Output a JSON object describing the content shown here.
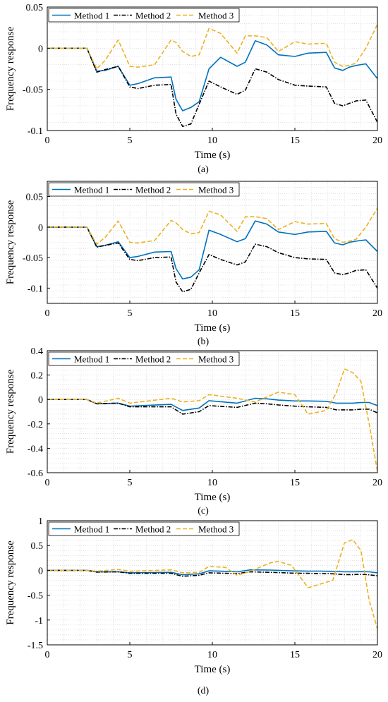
{
  "colors": {
    "method1": "#0072BD",
    "method2": "#000000",
    "method3": "#EDB120",
    "grid": "#d0d0d0",
    "axis": "#000000"
  },
  "chart_data": [
    {
      "type": "line",
      "caption": "(a)",
      "xlabel": "Time  (s)",
      "ylabel": "Frequency response",
      "xlim": [
        0,
        20
      ],
      "ylim": [
        -0.1,
        0.05
      ],
      "xticks": [
        0,
        5,
        10,
        15,
        20
      ],
      "yticks": [
        -0.1,
        -0.05,
        0,
        0.05
      ],
      "ytick_labels": [
        "-0.1",
        "-0.05",
        "0",
        "0.05"
      ],
      "grid": "minor dotted",
      "legend": "top, horizontal",
      "x": [
        0,
        2.4,
        3.0,
        3.5,
        4.3,
        5.0,
        5.5,
        6.5,
        7.5,
        7.8,
        8.2,
        8.7,
        9.2,
        9.8,
        10.5,
        11.5,
        12.0,
        12.6,
        13.3,
        14.0,
        15.0,
        15.8,
        16.9,
        17.4,
        17.9,
        18.3,
        18.7,
        19.3,
        20.0
      ],
      "series": [
        {
          "name": "Method 1",
          "style": "solid",
          "values": [
            0,
            0,
            -0.028,
            -0.027,
            -0.022,
            -0.045,
            -0.043,
            -0.036,
            -0.035,
            -0.062,
            -0.076,
            -0.072,
            -0.065,
            -0.025,
            -0.011,
            -0.022,
            -0.017,
            0.009,
            0.004,
            -0.008,
            -0.01,
            -0.006,
            -0.005,
            -0.024,
            -0.027,
            -0.023,
            -0.021,
            -0.019,
            -0.037
          ]
        },
        {
          "name": "Method 2",
          "style": "dash-dot",
          "values": [
            0,
            0,
            -0.029,
            -0.026,
            -0.022,
            -0.047,
            -0.049,
            -0.045,
            -0.044,
            -0.08,
            -0.095,
            -0.092,
            -0.068,
            -0.04,
            -0.047,
            -0.056,
            -0.051,
            -0.025,
            -0.029,
            -0.038,
            -0.045,
            -0.046,
            -0.047,
            -0.067,
            -0.07,
            -0.067,
            -0.064,
            -0.063,
            -0.09
          ]
        },
        {
          "name": "Method 3",
          "style": "dashed",
          "values": [
            0,
            0,
            -0.025,
            -0.015,
            0.01,
            -0.022,
            -0.023,
            -0.02,
            0.01,
            0.007,
            -0.004,
            -0.01,
            -0.008,
            0.024,
            0.018,
            -0.006,
            0.015,
            0.015,
            0.013,
            -0.004,
            0.008,
            0.005,
            0.006,
            -0.017,
            -0.022,
            -0.021,
            -0.018,
            0.0,
            0.029
          ]
        }
      ]
    },
    {
      "type": "line",
      "caption": "(b)",
      "xlabel": "Time  (s)",
      "ylabel": "Frequency response",
      "xlim": [
        0,
        20
      ],
      "ylim": [
        -0.125,
        0.075
      ],
      "xticks": [
        0,
        5,
        10,
        15,
        20
      ],
      "yticks": [
        -0.1,
        -0.05,
        0,
        0.05
      ],
      "ytick_labels": [
        "-0.1",
        "-0.05",
        "0",
        "0.05"
      ],
      "grid": "minor dotted",
      "legend": "top, horizontal",
      "x": [
        0,
        2.4,
        3.0,
        3.5,
        4.3,
        5.0,
        5.5,
        6.5,
        7.5,
        7.8,
        8.2,
        8.7,
        9.2,
        9.8,
        10.5,
        11.5,
        12.0,
        12.6,
        13.3,
        14.0,
        15.0,
        15.8,
        16.9,
        17.4,
        17.9,
        18.3,
        18.7,
        19.3,
        20.0
      ],
      "series": [
        {
          "name": "Method 1",
          "style": "solid",
          "values": [
            0,
            0,
            -0.032,
            -0.03,
            -0.024,
            -0.05,
            -0.048,
            -0.041,
            -0.04,
            -0.068,
            -0.085,
            -0.082,
            -0.07,
            -0.005,
            -0.012,
            -0.024,
            -0.019,
            0.01,
            0.005,
            -0.008,
            -0.012,
            -0.008,
            -0.007,
            -0.026,
            -0.029,
            -0.025,
            -0.023,
            -0.021,
            -0.04
          ]
        },
        {
          "name": "Method 2",
          "style": "dash-dot",
          "values": [
            0,
            0,
            -0.033,
            -0.03,
            -0.026,
            -0.053,
            -0.055,
            -0.05,
            -0.049,
            -0.09,
            -0.106,
            -0.102,
            -0.075,
            -0.045,
            -0.053,
            -0.062,
            -0.057,
            -0.028,
            -0.032,
            -0.042,
            -0.05,
            -0.052,
            -0.053,
            -0.075,
            -0.078,
            -0.075,
            -0.071,
            -0.07,
            -0.1
          ]
        },
        {
          "name": "Method 3",
          "style": "dashed",
          "values": [
            0,
            0,
            -0.028,
            -0.017,
            0.01,
            -0.025,
            -0.026,
            -0.022,
            0.011,
            0.007,
            -0.004,
            -0.011,
            -0.009,
            0.026,
            0.02,
            -0.007,
            0.017,
            0.017,
            0.014,
            -0.004,
            0.009,
            0.005,
            0.006,
            -0.019,
            -0.025,
            -0.023,
            -0.02,
            0.0,
            0.031
          ]
        }
      ]
    },
    {
      "type": "line",
      "caption": "(c)",
      "xlabel": "Time  (s)",
      "ylabel": "Frequency response",
      "xlim": [
        0,
        20
      ],
      "ylim": [
        -0.6,
        0.4
      ],
      "xticks": [
        0,
        5,
        10,
        15,
        20
      ],
      "yticks": [
        -0.6,
        -0.4,
        -0.2,
        0,
        0.2,
        0.4
      ],
      "ytick_labels": [
        "-0.6",
        "-0.4",
        "-0.2",
        "0",
        "0.2",
        "0.4"
      ],
      "grid": "minor dotted",
      "legend": "top, horizontal",
      "x": [
        0,
        2.4,
        3.0,
        4.3,
        5.0,
        7.5,
        8.2,
        9.2,
        9.8,
        11.5,
        12.6,
        13.3,
        14.0,
        15.0,
        15.8,
        16.9,
        17.5,
        18.0,
        18.5,
        19.0,
        19.5,
        20.0
      ],
      "series": [
        {
          "name": "Method 1",
          "style": "solid",
          "values": [
            0,
            0,
            -0.035,
            -0.03,
            -0.055,
            -0.04,
            -0.09,
            -0.07,
            -0.01,
            -0.03,
            0.01,
            0.005,
            -0.005,
            -0.012,
            -0.012,
            -0.015,
            -0.03,
            -0.03,
            -0.03,
            -0.025,
            -0.025,
            -0.05
          ]
        },
        {
          "name": "Method 2",
          "style": "dash-dot",
          "values": [
            0,
            0,
            -0.035,
            -0.03,
            -0.06,
            -0.06,
            -0.12,
            -0.1,
            -0.05,
            -0.065,
            -0.03,
            -0.035,
            -0.045,
            -0.055,
            -0.06,
            -0.065,
            -0.085,
            -0.085,
            -0.085,
            -0.08,
            -0.08,
            -0.11
          ]
        },
        {
          "name": "Method 3",
          "style": "dashed",
          "values": [
            0,
            0,
            -0.03,
            0.01,
            -0.03,
            0.01,
            -0.02,
            -0.01,
            0.04,
            0.01,
            -0.02,
            0.02,
            0.06,
            0.04,
            -0.12,
            -0.09,
            0.05,
            0.25,
            0.22,
            0.15,
            -0.2,
            -0.59
          ]
        }
      ]
    },
    {
      "type": "line",
      "caption": "(d)",
      "xlabel": "Time  (s)",
      "ylabel": "Frequency response",
      "xlim": [
        0,
        20
      ],
      "ylim": [
        -1.5,
        1
      ],
      "xticks": [
        0,
        5,
        10,
        15,
        20
      ],
      "yticks": [
        -1.5,
        -1,
        -0.5,
        0,
        0.5,
        1
      ],
      "ytick_labels": [
        "-1.5",
        "-1",
        "-0.5",
        "0",
        "0.5",
        "1"
      ],
      "grid": "minor dotted",
      "legend": "top, horizontal",
      "x": [
        0,
        2.4,
        3.0,
        4.3,
        5.0,
        7.5,
        8.2,
        9.2,
        9.8,
        10.8,
        11.5,
        12.3,
        13.5,
        14.0,
        14.8,
        15.8,
        16.5,
        17.3,
        18.0,
        18.5,
        19.0,
        19.5,
        20.0
      ],
      "series": [
        {
          "name": "Method 1",
          "style": "solid",
          "values": [
            0,
            0,
            -0.03,
            -0.03,
            -0.05,
            -0.04,
            -0.09,
            -0.07,
            -0.01,
            -0.02,
            -0.03,
            0.01,
            0.005,
            0.0,
            -0.01,
            -0.015,
            -0.015,
            -0.02,
            -0.03,
            -0.03,
            -0.025,
            -0.03,
            -0.05
          ]
        },
        {
          "name": "Method 2",
          "style": "dash-dot",
          "values": [
            0,
            0,
            -0.035,
            -0.03,
            -0.06,
            -0.06,
            -0.12,
            -0.1,
            -0.05,
            -0.06,
            -0.065,
            -0.03,
            -0.04,
            -0.045,
            -0.055,
            -0.06,
            -0.065,
            -0.07,
            -0.085,
            -0.085,
            -0.08,
            -0.09,
            -0.11
          ]
        },
        {
          "name": "Method 3",
          "style": "dashed",
          "values": [
            0,
            0,
            -0.02,
            0.02,
            -0.02,
            0.01,
            -0.05,
            -0.04,
            0.08,
            0.06,
            -0.1,
            -0.02,
            0.15,
            0.18,
            0.1,
            -0.35,
            -0.28,
            -0.2,
            0.55,
            0.62,
            0.4,
            -0.6,
            -1.18
          ]
        }
      ]
    }
  ]
}
